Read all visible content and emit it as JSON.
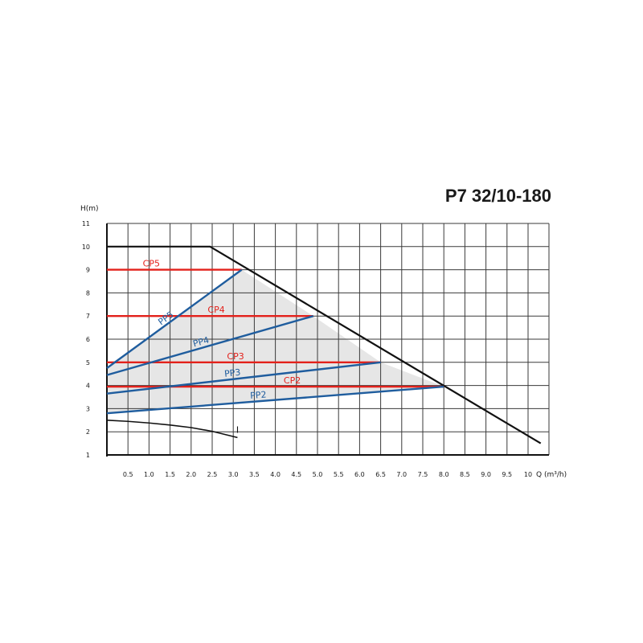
{
  "chart_data": {
    "type": "line",
    "title": "P7 32/10-180",
    "ylabel": "H(m)",
    "xlabel": "Q (m³/h)",
    "xlim": [
      0,
      10.5
    ],
    "ylim": [
      1,
      11
    ],
    "x_ticks": [
      "0.5",
      "1.0",
      "1.5",
      "2.0",
      "2.5",
      "3.0",
      "3.5",
      "4.0",
      "4.5",
      "5.0",
      "5.5",
      "6.0",
      "6.5",
      "7.0",
      "7.5",
      "8.0",
      "8.5",
      "9.0",
      "9.5",
      "10"
    ],
    "y_ticks": [
      "1",
      "2",
      "3",
      "4",
      "5",
      "6",
      "7",
      "8",
      "9",
      "10",
      "11"
    ],
    "grid": true,
    "colors": {
      "cp": "#e3211b",
      "pp": "#1f5d9e",
      "envelope": "#111111",
      "fill": "#e6e6e6",
      "grid": "#3a3a3a"
    },
    "envelope": {
      "x": [
        0,
        2.45,
        10.3
      ],
      "y": [
        10,
        10,
        1.5
      ]
    },
    "series": [
      {
        "name": "CP5",
        "kind": "cp",
        "x": [
          0,
          3.2
        ],
        "y": [
          9,
          9
        ]
      },
      {
        "name": "CP4",
        "kind": "cp",
        "x": [
          0,
          4.9
        ],
        "y": [
          7,
          7
        ]
      },
      {
        "name": "CP3",
        "kind": "cp",
        "x": [
          0,
          6.5
        ],
        "y": [
          5,
          5
        ]
      },
      {
        "name": "CP2",
        "kind": "cp",
        "x": [
          0,
          8.0
        ],
        "y": [
          3.95,
          3.95
        ]
      },
      {
        "name": "PP5",
        "kind": "pp",
        "x": [
          0,
          3.2
        ],
        "y": [
          4.75,
          9
        ]
      },
      {
        "name": "PP4",
        "kind": "pp",
        "x": [
          0,
          4.9
        ],
        "y": [
          4.45,
          7
        ]
      },
      {
        "name": "PP3",
        "kind": "pp",
        "x": [
          0,
          6.5
        ],
        "y": [
          3.65,
          5
        ]
      },
      {
        "name": "PP2",
        "kind": "pp",
        "x": [
          0,
          8.0
        ],
        "y": [
          2.8,
          3.95
        ]
      },
      {
        "name": "I",
        "kind": "min",
        "x": [
          0,
          0.5,
          1.0,
          1.5,
          2.0,
          2.5,
          3.1
        ],
        "y": [
          2.5,
          2.45,
          2.38,
          2.29,
          2.18,
          2.02,
          1.75
        ]
      }
    ],
    "shaded_region": {
      "x": [
        0,
        3.2,
        4.9,
        6.5,
        8.0,
        0
      ],
      "y": [
        4.75,
        9,
        7,
        5,
        3.95,
        2.8
      ]
    }
  }
}
